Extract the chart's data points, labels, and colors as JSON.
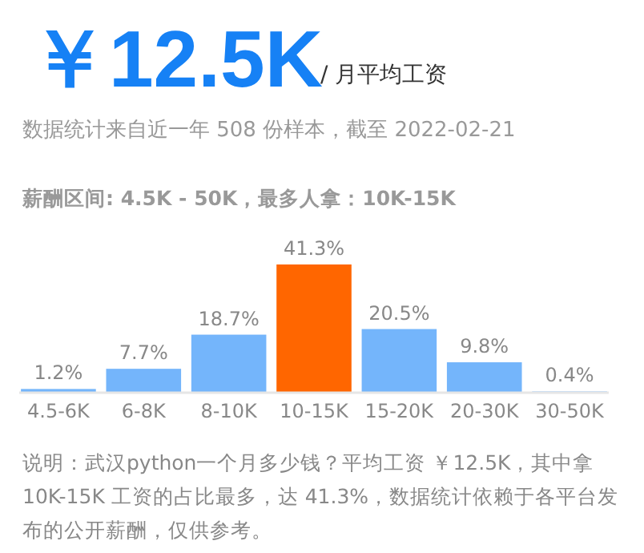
{
  "chart_data": {
    "type": "bar",
    "title": "￥12.5K",
    "subtitle": "/ 月平均工资",
    "annotations": [
      "数据统计来自近一年 508 份样本，截至 2022-02-21",
      "薪酬区间: 4.5K - 50K，最多人拿：10K-15K",
      "说明：武汉python一个月多少钱？平均工资 ￥12.5K，其中拿 10K-15K 工资的占比最多，达 41.3%，数据统计依赖于各平台发布的公开薪酬，仅供参考。"
    ],
    "categories": [
      "4.5-6K",
      "6-8K",
      "8-10K",
      "10-15K",
      "15-20K",
      "20-30K",
      "30-50K"
    ],
    "values": [
      1.2,
      7.7,
      18.7,
      41.3,
      20.5,
      9.8,
      0.4
    ],
    "colors": [
      "#74b5fb",
      "#74b5fb",
      "#74b5fb",
      "#ff6600",
      "#74b5fb",
      "#74b5fb",
      "#74b5fb"
    ],
    "value_labels": [
      "1.2%",
      "7.7%",
      "18.7%",
      "41.3%",
      "20.5%",
      "9.8%",
      "0.4%"
    ]
  }
}
